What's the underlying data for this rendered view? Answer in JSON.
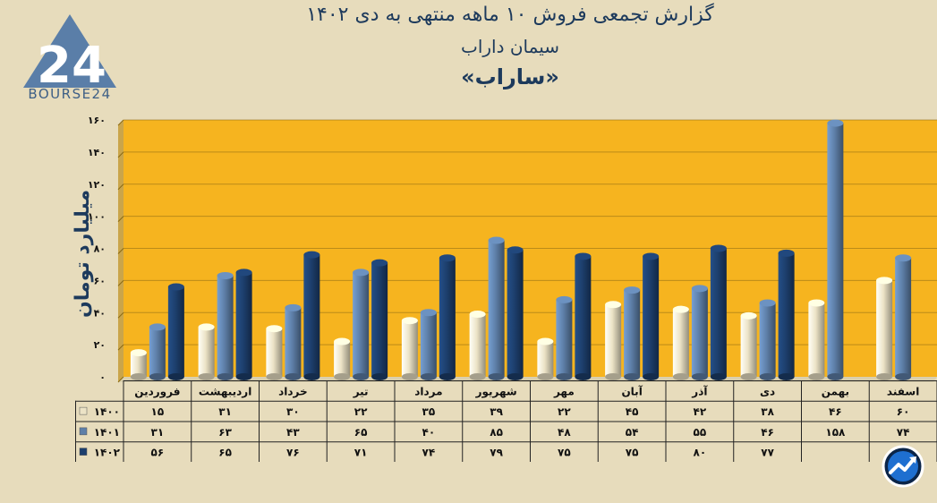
{
  "header": {
    "title": "گزارش تجمعی فروش ۱۰ ماهه منتهی به دی ۱۴۰۲",
    "subtitle": "سیمان داراب",
    "symbol": "«ساراب»"
  },
  "logo": {
    "text": "BOURSE24",
    "icon": "bourse24-logo-icon"
  },
  "badge": {
    "icon": "trend-arrow-icon"
  },
  "chart_data": {
    "type": "bar",
    "ylabel": "میلیارد تومان",
    "ylim": [
      0,
      160
    ],
    "yticks": [
      0,
      20,
      40,
      60,
      80,
      100,
      120,
      140,
      160
    ],
    "ytick_labels": [
      "۰",
      "۲۰",
      "۴۰",
      "۶۰",
      "۸۰",
      "۱۰۰",
      "۱۲۰",
      "۱۴۰",
      "۱۶۰"
    ],
    "grid": true,
    "categories": [
      "فروردین",
      "اردیبهشت",
      "خرداد",
      "تیر",
      "مرداد",
      "شهریور",
      "مهر",
      "آبان",
      "آذر",
      "دی",
      "بهمن",
      "اسفند"
    ],
    "series": [
      {
        "name": "۱۴۰۰",
        "color": "#ece3c6",
        "values": [
          15,
          31,
          30,
          22,
          35,
          39,
          22,
          45,
          42,
          38,
          46,
          60
        ],
        "labels": [
          "۱۵",
          "۳۱",
          "۳۰",
          "۲۲",
          "۳۵",
          "۳۹",
          "۲۲",
          "۴۵",
          "۴۲",
          "۳۸",
          "۴۶",
          "۶۰"
        ]
      },
      {
        "name": "۱۴۰۱",
        "color": "#5e7fa8",
        "values": [
          31,
          63,
          43,
          65,
          40,
          85,
          48,
          54,
          55,
          46,
          158,
          74
        ],
        "labels": [
          "۳۱",
          "۶۳",
          "۴۳",
          "۶۵",
          "۴۰",
          "۸۵",
          "۴۸",
          "۵۴",
          "۵۵",
          "۴۶",
          "۱۵۸",
          "۷۴"
        ]
      },
      {
        "name": "۱۴۰۲",
        "color": "#1d3f6d",
        "values": [
          56,
          65,
          76,
          71,
          74,
          79,
          75,
          75,
          80,
          77,
          null,
          null
        ],
        "labels": [
          "۵۶",
          "۶۵",
          "۷۶",
          "۷۱",
          "۷۴",
          "۷۹",
          "۷۵",
          "۷۵",
          "۸۰",
          "۷۷",
          "",
          ""
        ]
      }
    ]
  }
}
